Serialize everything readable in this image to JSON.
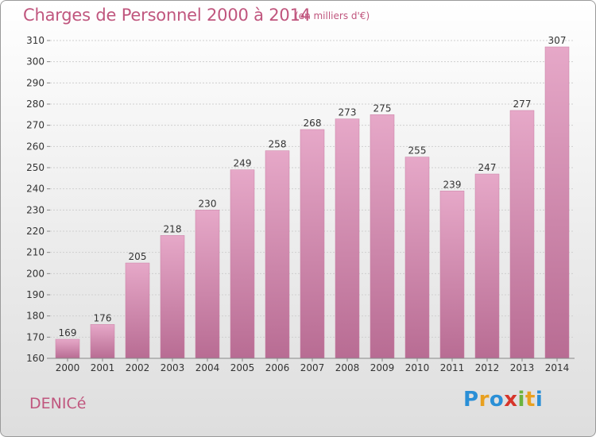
{
  "title": "Charges de Personnel 2000 à 2014",
  "subtitle": "(en milliers d'€)",
  "commune": "DENICé",
  "logo": [
    "P",
    "r",
    "o",
    "x",
    "i",
    "t",
    "i"
  ],
  "colors": {
    "bar": "#d98bb0",
    "accent": "#c0567e"
  },
  "chart_data": {
    "type": "bar",
    "categories": [
      "2000",
      "2001",
      "2002",
      "2003",
      "2004",
      "2005",
      "2006",
      "2007",
      "2008",
      "2009",
      "2010",
      "2011",
      "2012",
      "2013",
      "2014"
    ],
    "values": [
      169,
      176,
      205,
      218,
      230,
      249,
      258,
      268,
      273,
      275,
      255,
      239,
      247,
      277,
      307
    ],
    "ylim": [
      160,
      310
    ],
    "yticks": [
      160,
      170,
      180,
      190,
      200,
      210,
      220,
      230,
      240,
      250,
      260,
      270,
      280,
      290,
      300,
      310
    ],
    "grid": true,
    "title": "Charges de Personnel 2000 à 2014",
    "xlabel": "",
    "ylabel": ""
  }
}
